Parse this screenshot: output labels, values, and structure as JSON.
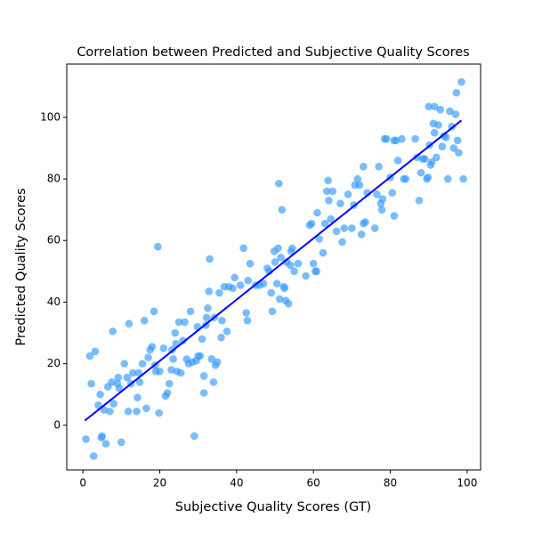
{
  "chart_data": {
    "type": "scatter",
    "title": "Correlation between Predicted and Subjective Quality Scores",
    "xlabel": "Subjective Quality Scores (GT)",
    "ylabel": "Predicted Quality Scores",
    "xlim": [
      -4.2,
      103.5
    ],
    "ylim": [
      -14.5,
      117.3
    ],
    "xticks": [
      0,
      20,
      40,
      60,
      80,
      100
    ],
    "yticks": [
      0,
      20,
      40,
      60,
      80,
      100
    ],
    "grid": false,
    "series": [
      {
        "type": "scatter",
        "color": "#3399ff",
        "alpha": 0.65,
        "x": [
          0.8,
          1.8,
          2.2,
          2.8,
          3.2,
          4,
          4.5,
          4.8,
          5,
          5.5,
          6,
          6.5,
          7,
          7.5,
          7.8,
          8,
          9,
          9.2,
          9.5,
          10,
          10.8,
          11.5,
          11.8,
          12,
          12.5,
          13,
          14,
          14.2,
          14.5,
          14.8,
          15.5,
          16,
          16.5,
          17,
          17.5,
          18,
          18.5,
          18.8,
          19,
          19.5,
          19.8,
          20,
          21,
          21.5,
          22,
          22.5,
          23,
          23.2,
          23.5,
          24,
          24.2,
          24.5,
          25,
          25.5,
          26,
          26.5,
          27,
          27.5,
          28,
          28.5,
          29,
          29.5,
          29.8,
          30,
          30.5,
          31,
          31.5,
          31.5,
          32,
          32.2,
          32.5,
          32.8,
          33,
          33.5,
          34,
          34.2,
          34.5,
          35,
          35.5,
          36,
          36.2,
          36.8,
          37.5,
          38,
          39,
          39.5,
          41,
          41.8,
          42.5,
          42.8,
          43,
          43.5,
          45,
          46,
          47,
          48,
          48.5,
          49,
          49.3,
          49.8,
          50,
          50.5,
          50.8,
          51,
          51.2,
          51.5,
          51.8,
          52.3,
          52.5,
          52.8,
          53,
          53.5,
          54,
          54.2,
          54.5,
          55,
          56,
          58,
          59,
          59.5,
          60,
          60.5,
          60.8,
          61,
          61.5,
          62.5,
          63,
          63.5,
          63.8,
          64,
          64.5,
          65,
          66,
          67,
          67.5,
          68,
          69,
          70,
          70.5,
          70.8,
          71.5,
          72,
          72.5,
          73,
          73,
          73.5,
          74,
          76,
          76.5,
          77,
          77.5,
          77.8,
          78,
          78.5,
          79,
          80,
          80.5,
          81,
          81,
          81.5,
          82,
          83,
          83.5,
          84,
          86.5,
          87,
          87.5,
          88,
          88.5,
          89,
          89.5,
          89.8,
          90,
          90.2,
          90.5,
          90.8,
          91.2,
          91.5,
          91.5,
          92,
          92.5,
          93,
          93.5,
          94,
          94.5,
          95,
          95.5,
          96,
          96.5,
          97,
          97.2,
          97.5,
          97.8,
          98.5,
          99
        ],
        "y": [
          -4.5,
          22.5,
          13.5,
          -10,
          24,
          6.5,
          10,
          -4,
          -3.5,
          5,
          -6,
          12.5,
          4.5,
          14,
          30.5,
          7,
          13.5,
          15.5,
          12,
          -5.5,
          20,
          15.5,
          4.5,
          33,
          13.5,
          17,
          4.5,
          9,
          17,
          14,
          20,
          34,
          5.5,
          22,
          24.5,
          25.5,
          37,
          19.5,
          17.5,
          58,
          4,
          17.5,
          25,
          9.5,
          10.5,
          13.5,
          18,
          24.5,
          21.5,
          30,
          26.5,
          17.5,
          33.5,
          17,
          27.5,
          33.5,
          21.5,
          20,
          37,
          20.5,
          -3.5,
          21,
          32,
          22.5,
          22.5,
          28,
          10.5,
          16,
          32.5,
          35,
          38,
          43.5,
          54,
          21.5,
          14,
          35,
          19.5,
          20.5,
          43,
          28.5,
          34,
          45,
          30.5,
          45,
          44.5,
          48,
          45.5,
          57.5,
          36.5,
          34,
          47,
          52.5,
          45.5,
          45.5,
          46,
          51,
          50,
          43,
          37,
          56.5,
          53,
          46,
          57.5,
          78.5,
          41,
          54.5,
          70,
          45,
          44.5,
          40.5,
          53,
          39.5,
          52,
          56.5,
          57.5,
          50,
          52.5,
          48.5,
          65,
          65.5,
          52.5,
          50,
          50,
          69,
          60.5,
          56,
          65.5,
          76,
          79.5,
          73,
          67,
          76,
          63,
          72,
          59.5,
          64,
          75,
          64,
          71.5,
          78,
          80,
          78,
          62,
          84,
          65.5,
          66,
          75.5,
          64,
          75,
          84,
          72,
          70,
          73.5,
          93,
          93,
          80.5,
          75.5,
          92.5,
          68,
          92.5,
          86,
          93,
          80,
          80,
          93,
          87,
          73,
          82,
          86.5,
          86.5,
          80,
          80.5,
          103.5,
          91,
          84.5,
          85.5,
          98,
          95,
          103.5,
          87,
          97.5,
          102.5,
          90.5,
          94,
          93.5,
          80,
          102,
          97,
          90,
          101,
          108,
          92.5,
          88.5,
          111.5,
          80
        ]
      },
      {
        "type": "line",
        "color": "#0000ff",
        "x": [
          0.5,
          98.5
        ],
        "y": [
          1.5,
          99
        ]
      }
    ]
  }
}
